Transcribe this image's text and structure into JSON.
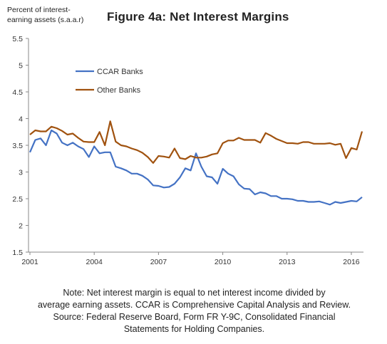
{
  "header": {
    "ylabel_line1": "Percent of interest-",
    "ylabel_line2": "earning assets  (s.a.a.r)",
    "title": "Figure 4a:  Net Interest Margins"
  },
  "note": {
    "line1": "Note:  Net interest margin is equal to net interest income divided by",
    "line2": "average earning assets. CCAR is Comprehensive Capital Analysis and Review.",
    "line3": "Source:  Federal Reserve Board, Form FR Y-9C, Consolidated Financial",
    "line4": "Statements for Holding Companies."
  },
  "chart_data": {
    "type": "line",
    "title": "Figure 4a:  Net Interest Margins",
    "ylabel": "Percent of interest-earning assets  (s.a.a.r)",
    "xlabel": "",
    "ylim": [
      1.5,
      5.5
    ],
    "yticks": [
      "1.5",
      "2",
      "2.5",
      "3",
      "3.5",
      "4",
      "4.5",
      "5",
      "5.5"
    ],
    "xticks": [
      "2001",
      "2004",
      "2007",
      "2010",
      "2013",
      "2016"
    ],
    "xlim": [
      "2001Q1",
      "2016Q3"
    ],
    "grid": false,
    "legend_position": "upper-left",
    "colors": {
      "CCAR Banks": "#4472C4",
      "Other Banks": "#A0520F"
    },
    "x": [
      "2001Q1",
      "2001Q2",
      "2001Q3",
      "2001Q4",
      "2002Q1",
      "2002Q2",
      "2002Q3",
      "2002Q4",
      "2003Q1",
      "2003Q2",
      "2003Q3",
      "2003Q4",
      "2004Q1",
      "2004Q2",
      "2004Q3",
      "2004Q4",
      "2005Q1",
      "2005Q2",
      "2005Q3",
      "2005Q4",
      "2006Q1",
      "2006Q2",
      "2006Q3",
      "2006Q4",
      "2007Q1",
      "2007Q2",
      "2007Q3",
      "2007Q4",
      "2008Q1",
      "2008Q2",
      "2008Q3",
      "2008Q4",
      "2009Q1",
      "2009Q2",
      "2009Q3",
      "2009Q4",
      "2010Q1",
      "2010Q2",
      "2010Q3",
      "2010Q4",
      "2011Q1",
      "2011Q2",
      "2011Q3",
      "2011Q4",
      "2012Q1",
      "2012Q2",
      "2012Q3",
      "2012Q4",
      "2013Q1",
      "2013Q2",
      "2013Q3",
      "2013Q4",
      "2014Q1",
      "2014Q2",
      "2014Q3",
      "2014Q4",
      "2015Q1",
      "2015Q2",
      "2015Q3",
      "2015Q4",
      "2016Q1",
      "2016Q2",
      "2016Q3"
    ],
    "series": [
      {
        "name": "CCAR Banks",
        "values": [
          3.37,
          3.6,
          3.63,
          3.5,
          3.78,
          3.72,
          3.55,
          3.5,
          3.55,
          3.48,
          3.43,
          3.28,
          3.48,
          3.35,
          3.37,
          3.37,
          3.1,
          3.07,
          3.03,
          2.97,
          2.97,
          2.93,
          2.86,
          2.75,
          2.74,
          2.71,
          2.72,
          2.78,
          2.9,
          3.07,
          3.03,
          3.35,
          3.1,
          2.92,
          2.9,
          2.78,
          3.06,
          2.97,
          2.92,
          2.77,
          2.69,
          2.68,
          2.58,
          2.62,
          2.6,
          2.55,
          2.55,
          2.5,
          2.5,
          2.49,
          2.46,
          2.46,
          2.44,
          2.44,
          2.45,
          2.42,
          2.39,
          2.44,
          2.42,
          2.44,
          2.46,
          2.45,
          2.53
        ]
      },
      {
        "name": "Other Banks",
        "values": [
          3.7,
          3.78,
          3.76,
          3.76,
          3.85,
          3.82,
          3.77,
          3.7,
          3.72,
          3.64,
          3.57,
          3.56,
          3.56,
          3.75,
          3.5,
          3.95,
          3.57,
          3.5,
          3.48,
          3.44,
          3.41,
          3.36,
          3.28,
          3.17,
          3.3,
          3.29,
          3.27,
          3.44,
          3.26,
          3.24,
          3.3,
          3.27,
          3.27,
          3.29,
          3.33,
          3.35,
          3.54,
          3.59,
          3.59,
          3.64,
          3.6,
          3.6,
          3.6,
          3.55,
          3.73,
          3.68,
          3.62,
          3.58,
          3.54,
          3.54,
          3.53,
          3.56,
          3.56,
          3.53,
          3.53,
          3.53,
          3.54,
          3.51,
          3.53,
          3.26,
          3.45,
          3.42,
          3.76
        ]
      }
    ]
  }
}
